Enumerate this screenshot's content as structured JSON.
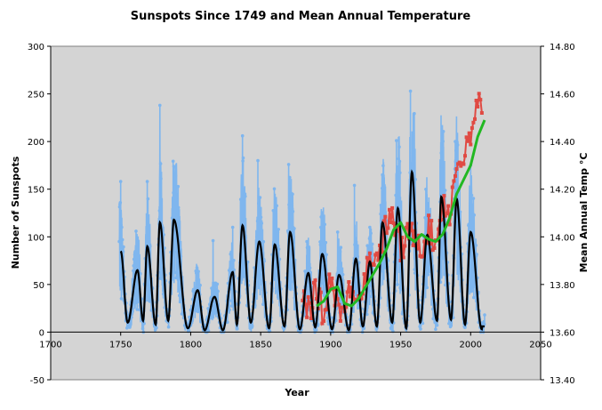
{
  "chart_data": {
    "type": "line",
    "title": "Sunspots Since 1749 and Mean Annual Temperature",
    "xlabel": "Year",
    "ylabel": "Number of Sunspots",
    "y2label": "Mean Annual Temp °C",
    "xlim": [
      1700,
      2050
    ],
    "ylim": [
      -50,
      300
    ],
    "y2lim": [
      13.4,
      14.8
    ],
    "x_ticks": [
      "1700",
      "1750",
      "1800",
      "1850",
      "1900",
      "1950",
      "2000",
      "2050"
    ],
    "y_ticks": [
      "-50",
      "0",
      "50",
      "100",
      "150",
      "200",
      "250",
      "300"
    ],
    "y2_ticks": [
      "13.40",
      "13.60",
      "13.80",
      "14.00",
      "14.20",
      "14.40",
      "14.60",
      "14.80"
    ],
    "plot_background": "#d4d4d4",
    "grid": false,
    "legend": "none",
    "colors": {
      "monthly_sunspots": "#7fb6ee",
      "smoothed_sunspots": "#000000",
      "annual_temperature": "#e04a43",
      "smoothed_temperature": "#22b822"
    },
    "series": [
      {
        "key": "monthly_sunspots",
        "axis": "left",
        "description_peaks": [
          [
            1750,
            158
          ],
          [
            1761,
            106
          ],
          [
            1769,
            158
          ],
          [
            1778,
            238
          ],
          [
            1788,
            174
          ],
          [
            1804,
            62
          ],
          [
            1816,
            96
          ],
          [
            1830,
            110
          ],
          [
            1837,
            206
          ],
          [
            1848,
            180
          ],
          [
            1860,
            116
          ],
          [
            1870,
            176
          ],
          [
            1883,
            95
          ],
          [
            1893,
            110
          ],
          [
            1905,
            105
          ],
          [
            1917,
            154
          ],
          [
            1928,
            110
          ],
          [
            1937,
            165
          ],
          [
            1947,
            201
          ],
          [
            1957,
            253
          ],
          [
            1969,
            135
          ],
          [
            1979,
            188
          ],
          [
            1989,
            200
          ],
          [
            2000,
            175
          ],
          [
            2010,
            18
          ]
        ]
      },
      {
        "key": "smoothed_sunspots",
        "axis": "left",
        "maxima": [
          [
            1750,
            85
          ],
          [
            1762,
            65
          ],
          [
            1769,
            90
          ],
          [
            1778,
            115
          ],
          [
            1788,
            118
          ],
          [
            1805,
            44
          ],
          [
            1817,
            37
          ],
          [
            1830,
            63
          ],
          [
            1837,
            112
          ],
          [
            1849,
            95
          ],
          [
            1860,
            92
          ],
          [
            1871,
            105
          ],
          [
            1884,
            62
          ],
          [
            1894,
            82
          ],
          [
            1906,
            60
          ],
          [
            1918,
            77
          ],
          [
            1928,
            74
          ],
          [
            1937,
            115
          ],
          [
            1948,
            130
          ],
          [
            1958,
            168
          ],
          [
            1969,
            102
          ],
          [
            1979,
            142
          ],
          [
            1990,
            140
          ],
          [
            2000,
            105
          ]
        ],
        "minima": [
          [
            1755,
            10
          ],
          [
            1766,
            12
          ],
          [
            1775,
            8
          ],
          [
            1784,
            12
          ],
          [
            1798,
            4
          ],
          [
            1810,
            2
          ],
          [
            1823,
            2
          ],
          [
            1833,
            8
          ],
          [
            1843,
            10
          ],
          [
            1856,
            4
          ],
          [
            1867,
            6
          ],
          [
            1878,
            3
          ],
          [
            1889,
            5
          ],
          [
            1901,
            3
          ],
          [
            1913,
            2
          ],
          [
            1923,
            6
          ],
          [
            1933,
            6
          ],
          [
            1944,
            10
          ],
          [
            1954,
            4
          ],
          [
            1964,
            10
          ],
          [
            1976,
            12
          ],
          [
            1986,
            13
          ],
          [
            1996,
            8
          ],
          [
            2008,
            3
          ]
        ]
      },
      {
        "key": "annual_temperature",
        "axis": "right",
        "x": [
          1880,
          1885,
          1890,
          1895,
          1900,
          1905,
          1910,
          1915,
          1920,
          1925,
          1930,
          1935,
          1940,
          1945,
          1950,
          1955,
          1960,
          1965,
          1970,
          1975,
          1980,
          1985,
          1990,
          1995,
          2000,
          2005,
          2008
        ],
        "y": [
          13.74,
          13.7,
          13.78,
          13.66,
          13.84,
          13.72,
          13.68,
          13.82,
          13.74,
          13.86,
          13.92,
          13.94,
          14.06,
          14.08,
          13.94,
          14.0,
          14.02,
          13.96,
          14.04,
          13.96,
          14.16,
          14.1,
          14.3,
          14.34,
          14.4,
          14.58,
          14.52
        ]
      },
      {
        "key": "smoothed_temperature",
        "axis": "right",
        "x": [
          1890,
          1895,
          1900,
          1905,
          1910,
          1915,
          1920,
          1925,
          1930,
          1935,
          1940,
          1945,
          1950,
          1955,
          1960,
          1965,
          1970,
          1975,
          1980,
          1985,
          1990,
          1995,
          2000,
          2005,
          2010
        ],
        "y": [
          13.71,
          13.73,
          13.78,
          13.79,
          13.72,
          13.71,
          13.74,
          13.79,
          13.84,
          13.89,
          13.95,
          14.03,
          14.06,
          14.0,
          13.98,
          14.01,
          13.99,
          13.98,
          14.01,
          14.08,
          14.18,
          14.24,
          14.3,
          14.42,
          14.49
        ]
      }
    ]
  }
}
